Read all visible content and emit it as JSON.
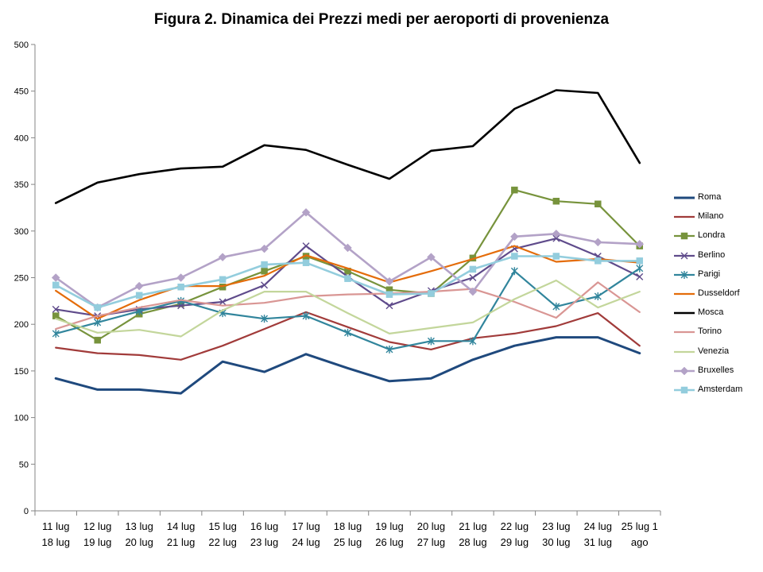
{
  "chart_data": {
    "type": "line",
    "title": "Figura 2. Dinamica dei Prezzi medi per aeroporti di provenienza",
    "xlabel": "",
    "ylabel": "",
    "ylim": [
      0,
      500
    ],
    "yticks": [
      0,
      50,
      100,
      150,
      200,
      250,
      300,
      350,
      400,
      450,
      500
    ],
    "grid": false,
    "legend_position": "right",
    "categories": [
      [
        "11 lug",
        "18 lug"
      ],
      [
        "12 lug",
        "19 lug"
      ],
      [
        "13 lug",
        "20 lug"
      ],
      [
        "14 lug",
        "21 lug"
      ],
      [
        "15 lug",
        "22 lug"
      ],
      [
        "16 lug",
        "23 lug"
      ],
      [
        "17 lug",
        "24 lug"
      ],
      [
        "18 lug",
        "25 lug"
      ],
      [
        "19 lug",
        "26 lug"
      ],
      [
        "20 lug",
        "27 lug"
      ],
      [
        "21 lug",
        "28 lug"
      ],
      [
        "22 lug",
        "29 lug"
      ],
      [
        "23 lug",
        "30 lug"
      ],
      [
        "24 lug",
        "31 lug"
      ],
      [
        "25 lug 1",
        "ago"
      ]
    ],
    "series": [
      {
        "name": "Roma",
        "color": "#1F497D",
        "marker": "none",
        "width": 3,
        "values": [
          142,
          130,
          130,
          126,
          160,
          149,
          168,
          153,
          139,
          142,
          162,
          177,
          186,
          186,
          169
        ]
      },
      {
        "name": "Milano",
        "color": "#A13B3A",
        "marker": "none",
        "width": 2.2,
        "values": [
          175,
          169,
          167,
          162,
          177,
          195,
          213,
          197,
          181,
          173,
          185,
          190,
          198,
          212,
          177
        ]
      },
      {
        "name": "Londra",
        "color": "#77933C",
        "marker": "square",
        "width": 2.2,
        "values": [
          209,
          183,
          211,
          222,
          240,
          257,
          273,
          257,
          237,
          233,
          271,
          344,
          332,
          329,
          284
        ]
      },
      {
        "name": "Berlino",
        "color": "#5F4B8B",
        "marker": "x",
        "width": 2.2,
        "values": [
          216,
          209,
          216,
          220,
          224,
          242,
          284,
          251,
          220,
          236,
          250,
          281,
          292,
          273,
          251
        ]
      },
      {
        "name": "Parigi",
        "color": "#31859C",
        "marker": "star",
        "width": 2.2,
        "values": [
          190,
          202,
          214,
          225,
          212,
          206,
          209,
          191,
          173,
          182,
          182,
          257,
          219,
          230,
          260
        ]
      },
      {
        "name": "Dusseldorf",
        "color": "#E46C0A",
        "marker": "none",
        "width": 2.2,
        "values": [
          236,
          206,
          226,
          241,
          241,
          252,
          274,
          260,
          245,
          257,
          270,
          284,
          267,
          270,
          266
        ]
      },
      {
        "name": "Mosca",
        "color": "#000000",
        "marker": "none",
        "width": 2.6,
        "values": [
          330,
          352,
          361,
          367,
          369,
          392,
          387,
          371,
          356,
          386,
          391,
          431,
          451,
          448,
          373
        ]
      },
      {
        "name": "Torino",
        "color": "#D99694",
        "marker": "none",
        "width": 2.2,
        "values": [
          195,
          209,
          218,
          226,
          220,
          223,
          230,
          232,
          233,
          235,
          238,
          224,
          207,
          245,
          213
        ]
      },
      {
        "name": "Venezia",
        "color": "#C3D69B",
        "marker": "none",
        "width": 2.2,
        "values": [
          206,
          191,
          194,
          187,
          215,
          235,
          235,
          212,
          190,
          196,
          202,
          227,
          247,
          218,
          235
        ]
      },
      {
        "name": "Bruxelles",
        "color": "#B3A2C7",
        "marker": "diamond",
        "width": 2.6,
        "values": [
          250,
          218,
          241,
          250,
          272,
          281,
          320,
          282,
          246,
          272,
          235,
          294,
          297,
          288,
          286
        ]
      },
      {
        "name": "Amsterdam",
        "color": "#93CDDD",
        "marker": "square",
        "width": 2.6,
        "values": [
          242,
          218,
          231,
          240,
          248,
          264,
          266,
          249,
          232,
          233,
          259,
          273,
          273,
          268,
          268
        ]
      }
    ]
  }
}
